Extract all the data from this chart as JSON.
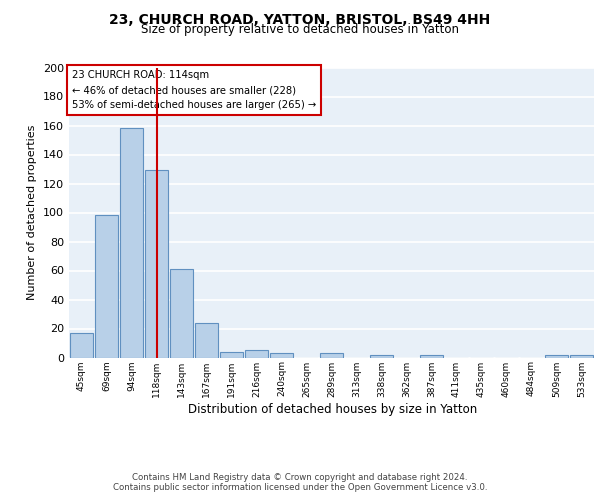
{
  "title1": "23, CHURCH ROAD, YATTON, BRISTOL, BS49 4HH",
  "title2": "Size of property relative to detached houses in Yatton",
  "xlabel": "Distribution of detached houses by size in Yatton",
  "ylabel": "Number of detached properties",
  "bin_labels": [
    "45sqm",
    "69sqm",
    "94sqm",
    "118sqm",
    "143sqm",
    "167sqm",
    "191sqm",
    "216sqm",
    "240sqm",
    "265sqm",
    "289sqm",
    "313sqm",
    "338sqm",
    "362sqm",
    "387sqm",
    "411sqm",
    "435sqm",
    "460sqm",
    "484sqm",
    "509sqm",
    "533sqm"
  ],
  "bar_values": [
    17,
    98,
    158,
    129,
    61,
    24,
    4,
    5,
    3,
    0,
    3,
    0,
    2,
    0,
    2,
    0,
    0,
    0,
    0,
    2,
    2
  ],
  "bar_color": "#b8d0e8",
  "bar_edge_color": "#6090c0",
  "bg_color": "#e8f0f8",
  "grid_color": "#ffffff",
  "vline_color": "#cc0000",
  "annotation_text": "23 CHURCH ROAD: 114sqm\n← 46% of detached houses are smaller (228)\n53% of semi-detached houses are larger (265) →",
  "annotation_box_color": "#ffffff",
  "annotation_box_edge": "#cc0000",
  "footer_line1": "Contains HM Land Registry data © Crown copyright and database right 2024.",
  "footer_line2": "Contains public sector information licensed under the Open Government Licence v3.0.",
  "ylim": [
    0,
    200
  ],
  "yticks": [
    0,
    20,
    40,
    60,
    80,
    100,
    120,
    140,
    160,
    180,
    200
  ],
  "title1_fontsize": 10,
  "title2_fontsize": 8.5
}
